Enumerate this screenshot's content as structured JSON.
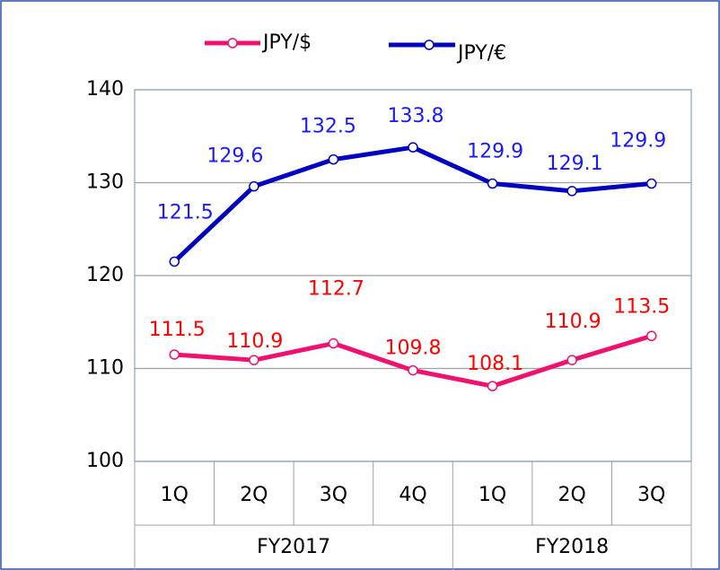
{
  "chart_data": {
    "type": "line",
    "categories": [
      "1Q",
      "2Q",
      "3Q",
      "4Q",
      "1Q",
      "2Q",
      "3Q"
    ],
    "category_groups": [
      "FY2017",
      "FY2017",
      "FY2017",
      "FY2017",
      "FY2018",
      "FY2018",
      "FY2018"
    ],
    "series": [
      {
        "name": "JPY/$",
        "color": "#f0106e",
        "label_color": "#ff0000",
        "values": [
          111.5,
          110.9,
          112.7,
          109.8,
          108.1,
          110.9,
          113.5
        ]
      },
      {
        "name": "JPY/€",
        "color": "#0000c0",
        "label_color": "#1a1aff",
        "values": [
          121.5,
          129.6,
          132.5,
          133.8,
          129.9,
          129.1,
          129.9
        ]
      }
    ],
    "ylim": [
      100,
      140
    ],
    "yticks": [
      100,
      110,
      120,
      130,
      140
    ],
    "grid": true,
    "legend": "top"
  }
}
